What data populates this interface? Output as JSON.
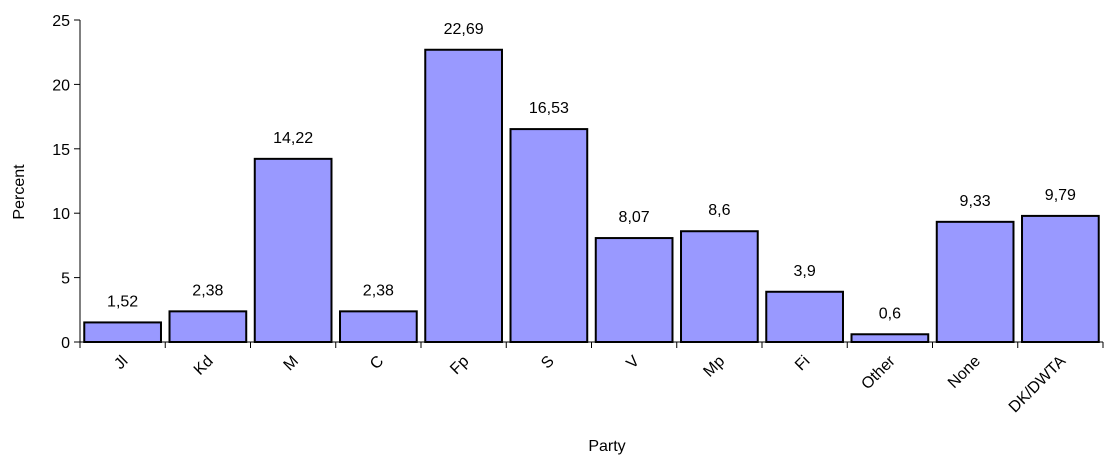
{
  "chart_data": {
    "type": "bar",
    "categories": [
      "Jl",
      "Kd",
      "M",
      "C",
      "Fp",
      "S",
      "V",
      "Mp",
      "Fi",
      "Other",
      "None",
      "DK/DWTA"
    ],
    "values": [
      1.52,
      2.38,
      14.22,
      2.38,
      22.69,
      16.53,
      8.07,
      8.6,
      3.9,
      0.6,
      9.33,
      9.79
    ],
    "value_labels": [
      "1,52",
      "2,38",
      "14,22",
      "2,38",
      "22,69",
      "16,53",
      "8,07",
      "8,6",
      "3,9",
      "0,6",
      "9,33",
      "9,79"
    ],
    "title": "",
    "xlabel": "Party",
    "ylabel": "Percent",
    "ylim": [
      0,
      25
    ],
    "yticks": [
      "0",
      "5",
      "10",
      "15",
      "20",
      "25"
    ],
    "grid": false,
    "legend": "none",
    "bar_color": "#9999ff",
    "bar_stroke": "#000000"
  }
}
